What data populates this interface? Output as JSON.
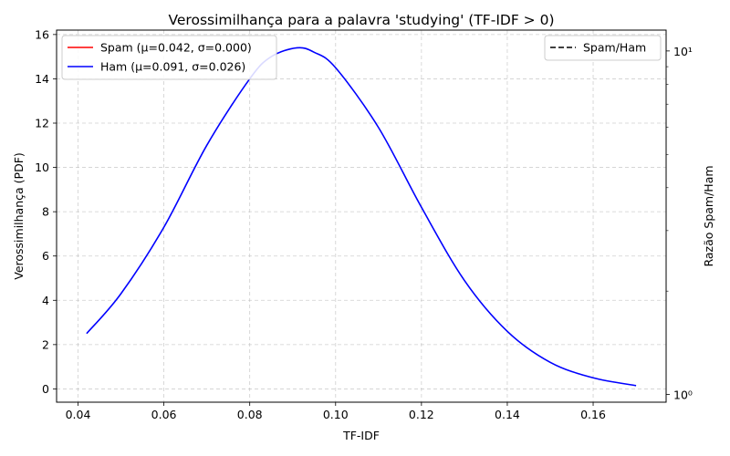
{
  "chart_data": {
    "type": "line",
    "title": "Verossimilhança para a palavra 'studying' (TF-IDF > 0)",
    "xlabel": "TF-IDF",
    "ylabel": "Verossimilhança (PDF)",
    "ylabel_right": "Razão Spam/Ham",
    "xlim": [
      0.035,
      0.177
    ],
    "ylim": [
      -0.6,
      16.2
    ],
    "xticks": [
      0.04,
      0.06,
      0.08,
      0.1,
      0.12,
      0.14,
      0.16
    ],
    "xtick_labels": [
      "0.04",
      "0.06",
      "0.08",
      "0.10",
      "0.12",
      "0.14",
      "0.16"
    ],
    "yticks": [
      0,
      2,
      4,
      6,
      8,
      10,
      12,
      14,
      16
    ],
    "ytick_labels": [
      "0",
      "2",
      "4",
      "6",
      "8",
      "10",
      "12",
      "14",
      "16"
    ],
    "y2_scale": "log",
    "y2lim": [
      0.95,
      11.5
    ],
    "y2ticks_major": [
      1,
      10
    ],
    "y2tick_labels": [
      "10⁰",
      "10¹"
    ],
    "y2ticks_minor": [
      2,
      3,
      4,
      5,
      6,
      7,
      8,
      9
    ],
    "grid": true,
    "series": [
      {
        "name": "Spam (μ=0.042, σ=0.000)",
        "color": "#ff0000",
        "style": "solid",
        "axis": "left",
        "x": [],
        "y": []
      },
      {
        "name": "Ham (μ=0.091, σ=0.026)",
        "color": "#0000ff",
        "style": "solid",
        "axis": "left",
        "x": [
          0.042,
          0.05,
          0.06,
          0.07,
          0.08,
          0.085,
          0.091,
          0.095,
          0.1,
          0.11,
          0.12,
          0.13,
          0.14,
          0.15,
          0.16,
          0.17
        ],
        "y": [
          2.5,
          4.3,
          7.3,
          11.0,
          14.0,
          15.0,
          15.4,
          15.2,
          14.5,
          11.8,
          8.2,
          4.9,
          2.6,
          1.2,
          0.5,
          0.15
        ]
      },
      {
        "name": "Spam/Ham",
        "color": "#000000",
        "style": "dashed",
        "axis": "right",
        "x": [],
        "y": []
      }
    ],
    "legend_left_placement": "top-left",
    "legend_right_placement": "top-right"
  }
}
